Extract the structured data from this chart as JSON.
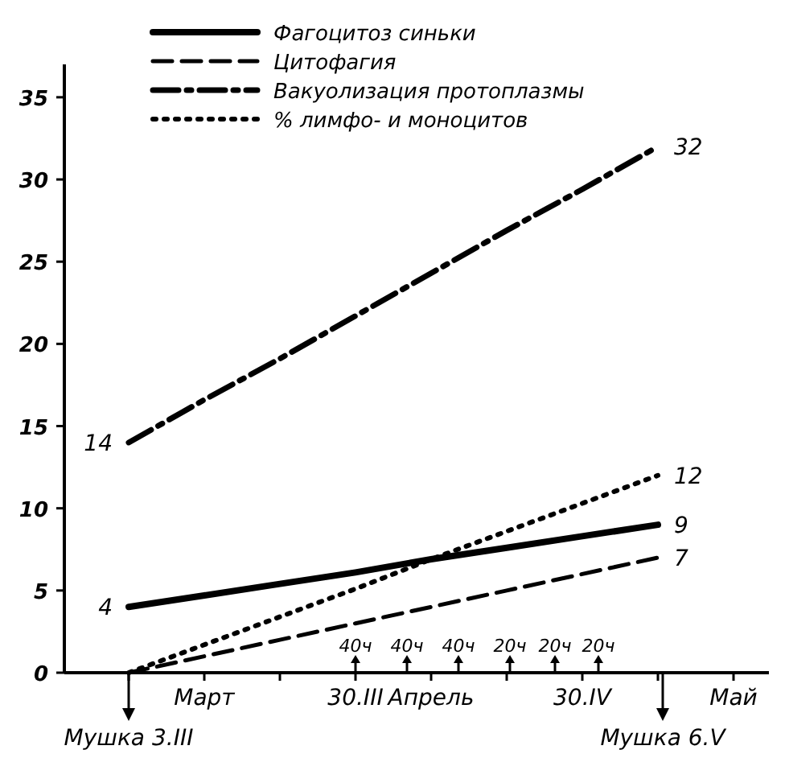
{
  "chart_data": {
    "type": "line",
    "categories": [
      null,
      "Март",
      null,
      "30.III",
      "Апрель",
      null,
      "30.IV",
      null,
      "Май"
    ],
    "ylim": [
      0,
      37
    ],
    "yticks": [
      0,
      5,
      10,
      15,
      20,
      25,
      30,
      35
    ],
    "grid": false,
    "legend": "top",
    "marker": "none",
    "series": [
      {
        "name": "Фагоцитоз синьки",
        "color": "#000000",
        "line_style": "solid",
        "values": [
          4,
          4.7,
          5.4,
          6.1,
          6.9,
          7.6,
          8.3,
          9,
          null
        ],
        "value_labels": [
          "4",
          null,
          null,
          null,
          null,
          null,
          null,
          "9",
          null
        ]
      },
      {
        "name": "Цитофагия",
        "color": "#000000",
        "line_style": "dashed",
        "values": [
          0,
          1,
          2,
          3,
          4,
          5,
          6,
          7,
          null
        ],
        "value_labels": [
          null,
          null,
          null,
          null,
          null,
          null,
          null,
          "7",
          null
        ]
      },
      {
        "name": "Вакуолизация протоплазмы",
        "color": "#000000",
        "line_style": "dashdot",
        "values": [
          14,
          16.6,
          19.1,
          21.7,
          24.3,
          26.9,
          29.4,
          32,
          null
        ],
        "value_labels": [
          "14",
          null,
          null,
          null,
          null,
          null,
          null,
          "32",
          null
        ]
      },
      {
        "name": "% лимфо- и моноцитов",
        "color": "#000000",
        "line_style": "dotted",
        "values": [
          0,
          1.7,
          3.4,
          5.1,
          6.9,
          8.6,
          10.3,
          12,
          null
        ],
        "value_labels": [
          null,
          null,
          null,
          null,
          null,
          null,
          null,
          "12",
          null
        ]
      }
    ],
    "annotations": [
      "Мушка 3.III",
      "Мушка 6.V",
      "40ч",
      "40ч",
      "40ч",
      "20ч",
      "20ч",
      "20ч"
    ]
  }
}
